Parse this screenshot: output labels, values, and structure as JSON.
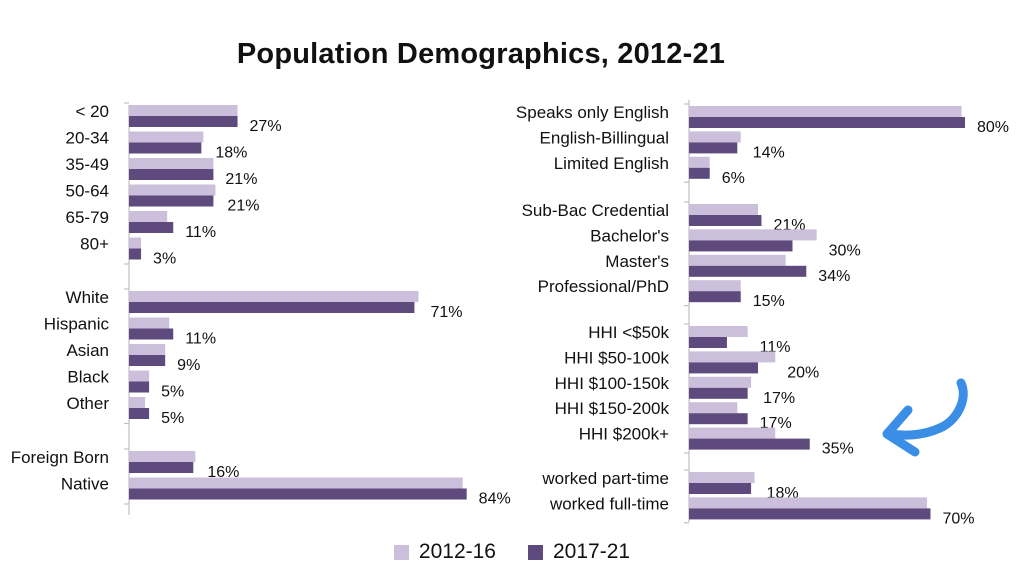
{
  "title": "Population Demographics, 2012-21",
  "colors": {
    "series_2012_16": "#cbbfdc",
    "series_2017_21": "#5f4a7d",
    "axis": "#c0c0c0",
    "annotation": "#3a8ee6"
  },
  "legend": [
    {
      "label": "2012-16",
      "color": "#cbbfdc"
    },
    {
      "label": "2017-21",
      "color": "#5f4a7d"
    }
  ],
  "annotation": {
    "shape": "hand-drawn-arrow",
    "color": "#3a8ee6",
    "points_to": "HHI $200k+"
  },
  "chart_data": [
    {
      "type": "bar",
      "orientation": "horizontal",
      "panel": "left",
      "series": [
        {
          "name": "2012-16"
        },
        {
          "name": "2017-21"
        }
      ],
      "groups": [
        {
          "items": [
            {
              "label": "< 20",
              "v2012": 27,
              "v2017": 27,
              "text": "27%"
            },
            {
              "label": "20-34",
              "v2012": 18.5,
              "v2017": 18,
              "text": "18%"
            },
            {
              "label": "35-49",
              "v2012": 21,
              "v2017": 21,
              "text": "21%"
            },
            {
              "label": "50-64",
              "v2012": 21.5,
              "v2017": 21,
              "text": "21%"
            },
            {
              "label": "65-79",
              "v2012": 9.5,
              "v2017": 11,
              "text": "11%"
            },
            {
              "label": "80+",
              "v2012": 3,
              "v2017": 3,
              "text": "3%"
            }
          ]
        },
        {
          "items": [
            {
              "label": "White",
              "v2012": 72,
              "v2017": 71,
              "text": "71%"
            },
            {
              "label": "Hispanic",
              "v2012": 10,
              "v2017": 11,
              "text": "11%"
            },
            {
              "label": "Asian",
              "v2012": 9,
              "v2017": 9,
              "text": "9%"
            },
            {
              "label": "Black",
              "v2012": 5,
              "v2017": 5,
              "text": "5%"
            },
            {
              "label": "Other",
              "v2012": 4,
              "v2017": 5,
              "text": "5%"
            }
          ]
        },
        {
          "items": [
            {
              "label": "Foreign Born",
              "v2012": 16.5,
              "v2017": 16,
              "text": "16%"
            },
            {
              "label": "Native",
              "v2012": 83,
              "v2017": 84,
              "text": "84%"
            }
          ]
        }
      ],
      "xlim": [
        0,
        100
      ]
    },
    {
      "type": "bar",
      "orientation": "horizontal",
      "panel": "right",
      "series": [
        {
          "name": "2012-16"
        },
        {
          "name": "2017-21"
        }
      ],
      "groups": [
        {
          "items": [
            {
              "label": "Speaks only English",
              "v2012": 79,
              "v2017": 80,
              "text": "80%"
            },
            {
              "label": "English-Billingual",
              "v2012": 15,
              "v2017": 14,
              "text": "14%"
            },
            {
              "label": "Limited English",
              "v2012": 6,
              "v2017": 6,
              "text": "6%"
            }
          ]
        },
        {
          "items": [
            {
              "label": "Sub-Bac Credential",
              "v2012": 20,
              "v2017": 21,
              "text": "21%"
            },
            {
              "label": "Bachelor's",
              "v2012": 37,
              "v2017": 30,
              "text": "30%"
            },
            {
              "label": "Master's",
              "v2012": 28,
              "v2017": 34,
              "text": "34%"
            },
            {
              "label": "Professional/PhD",
              "v2012": 15,
              "v2017": 15,
              "text": "15%"
            }
          ]
        },
        {
          "items": [
            {
              "label": "HHI <$50k",
              "v2012": 17,
              "v2017": 11,
              "text": "11%"
            },
            {
              "label": "HHI $50-100k",
              "v2012": 25,
              "v2017": 20,
              "text": "20%"
            },
            {
              "label": "HHI $100-150k",
              "v2012": 18,
              "v2017": 17,
              "text": "17%"
            },
            {
              "label": "HHI $150-200k",
              "v2012": 14,
              "v2017": 17,
              "text": "17%"
            },
            {
              "label": "HHI $200k+",
              "v2012": 25,
              "v2017": 35,
              "text": "35%"
            }
          ]
        },
        {
          "items": [
            {
              "label": "worked part-time",
              "v2012": 19,
              "v2017": 18,
              "text": "18%"
            },
            {
              "label": "worked full-time",
              "v2012": 69,
              "v2017": 70,
              "text": "70%"
            }
          ]
        }
      ],
      "xlim": [
        0,
        100
      ]
    }
  ]
}
